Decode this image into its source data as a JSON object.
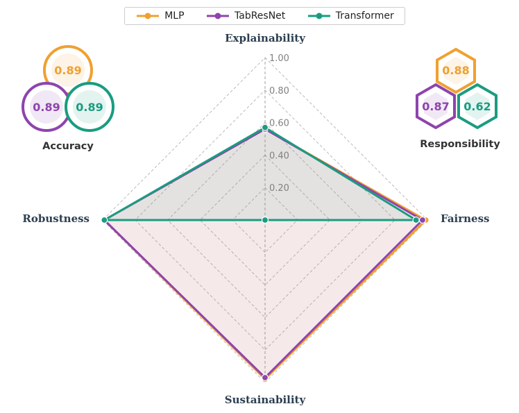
{
  "chart_data": {
    "type": "radar",
    "axes": [
      "Explainability",
      "Fairness",
      "Sustainability",
      "Robustness"
    ],
    "rlim": [
      0,
      1
    ],
    "r_ticks": [
      "0.20",
      "0.40",
      "0.60",
      "0.80",
      "1.00"
    ],
    "grid": true,
    "legend_position": "top-center",
    "series": [
      {
        "name": "MLP",
        "color": "#f0a030",
        "values": [
          0.56,
          0.99,
          0.98,
          0.99
        ]
      },
      {
        "name": "TabResNet",
        "color": "#8e44ad",
        "values": [
          0.56,
          0.97,
          0.97,
          0.99
        ]
      },
      {
        "name": "Transformer",
        "color": "#1a9c80",
        "values": [
          0.57,
          0.93,
          0.0,
          0.99
        ]
      }
    ]
  },
  "badges": {
    "accuracy": {
      "title": "Accuracy",
      "values": [
        "0.89",
        "0.89",
        "0.89"
      ]
    },
    "responsibility": {
      "title": "Responsibility",
      "values": [
        "0.88",
        "0.87",
        "0.62"
      ]
    }
  }
}
